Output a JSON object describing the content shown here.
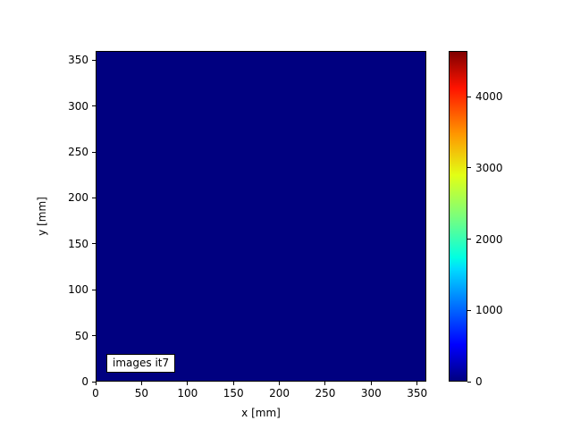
{
  "chart_data": {
    "type": "heatmap",
    "title": "",
    "xlabel": "x [mm]",
    "ylabel": "y [mm]",
    "xlim": [
      0,
      360
    ],
    "ylim": [
      0,
      360
    ],
    "xticks": [
      0,
      50,
      100,
      150,
      200,
      250,
      300,
      350
    ],
    "yticks": [
      0,
      50,
      100,
      150,
      200,
      250,
      300,
      350
    ],
    "grid": false,
    "annotation": "images it7",
    "uniform_value": 0,
    "colormap": "jet",
    "colormap_stops": [
      [
        0.0,
        "#000080"
      ],
      [
        0.11,
        "#0000ff"
      ],
      [
        0.34,
        "#00dbff"
      ],
      [
        0.375,
        "#00ffe2"
      ],
      [
        0.5,
        "#7bff7b"
      ],
      [
        0.625,
        "#e2ff15"
      ],
      [
        0.75,
        "#ff9700"
      ],
      [
        0.89,
        "#ff1300"
      ],
      [
        1.0,
        "#800000"
      ]
    ],
    "colorbar": {
      "vmin": 0,
      "vmax": 4640,
      "ticks": [
        0,
        1000,
        2000,
        3000,
        4000
      ],
      "position": "right"
    },
    "colors": {
      "figure_background": "#ffffff",
      "heatmap_fill": "#000080",
      "axis_color": "#000000"
    }
  }
}
